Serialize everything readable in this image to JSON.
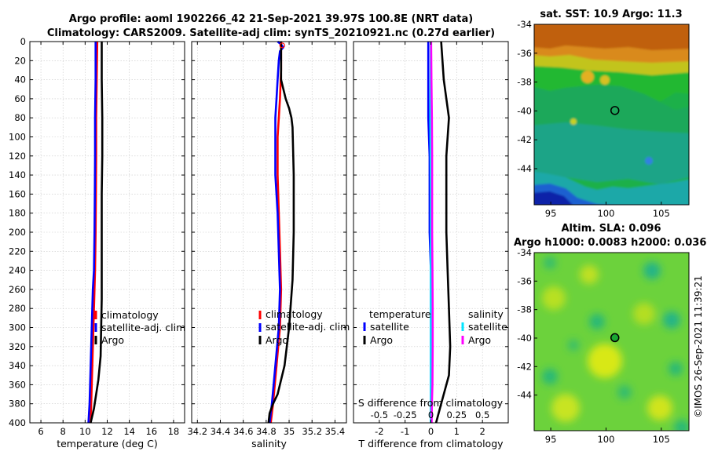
{
  "figure": {
    "title_line1": "Argo profile: aoml 1902266_42 21-Sep-2021 39.97S 100.8E (NRT data)",
    "title_line2": "Climatology: CARS2009. Satellite-adj clim: synTS_20210921.nc (0.27d earlier)",
    "watermark": "©IMOS 26-Sep-2021 11:39:21"
  },
  "colors": {
    "climatology": "#ff0000",
    "satellite": "#0000ff",
    "argo": "#000000",
    "sal_sat": "#00e5ff",
    "sal_argo": "#ff00ff"
  },
  "chart_data": [
    {
      "type": "line",
      "id": "temperature",
      "xlabel": "temperature (deg C)",
      "xlim": [
        5,
        19
      ],
      "xticks": [
        "6",
        "8",
        "10",
        "12",
        "14",
        "16",
        "18"
      ],
      "xtick_values": [
        6,
        8,
        10,
        12,
        14,
        16,
        18
      ],
      "ylim": [
        0,
        400
      ],
      "yticks": [
        "0",
        "20",
        "40",
        "60",
        "80",
        "100",
        "120",
        "140",
        "160",
        "180",
        "200",
        "220",
        "240",
        "260",
        "280",
        "300",
        "320",
        "340",
        "360",
        "380",
        "400"
      ],
      "ytick_values": [
        0,
        20,
        40,
        60,
        80,
        100,
        120,
        140,
        160,
        180,
        200,
        220,
        240,
        260,
        280,
        300,
        320,
        340,
        360,
        380,
        400
      ],
      "legend": [
        "climatology",
        "satellite-adj. clim",
        "Argo"
      ],
      "series": [
        {
          "name": "climatology",
          "color": "#ff0000",
          "depth": [
            0,
            40,
            80,
            120,
            160,
            200,
            240,
            260,
            280,
            300,
            320,
            340,
            360,
            380,
            400
          ],
          "values": [
            11.1,
            11.05,
            11.0,
            11.0,
            10.98,
            10.95,
            10.9,
            10.85,
            10.8,
            10.75,
            10.7,
            10.65,
            10.6,
            10.55,
            10.5
          ]
        },
        {
          "name": "satellite-adj. clim",
          "color": "#0000ff",
          "depth": [
            0,
            40,
            80,
            120,
            160,
            200,
            240,
            260,
            280,
            300,
            320,
            340,
            360,
            380,
            400
          ],
          "values": [
            10.95,
            10.95,
            10.9,
            10.9,
            10.88,
            10.85,
            10.8,
            10.7,
            10.65,
            10.6,
            10.55,
            10.5,
            10.45,
            10.4,
            10.3
          ]
        },
        {
          "name": "Argo",
          "color": "#000000",
          "depth": [
            0,
            40,
            80,
            120,
            160,
            200,
            240,
            270,
            300,
            330,
            355,
            370,
            385,
            395,
            400
          ],
          "values": [
            11.5,
            11.5,
            11.55,
            11.55,
            11.5,
            11.5,
            11.5,
            11.5,
            11.45,
            11.4,
            11.2,
            11.0,
            10.8,
            10.6,
            10.5
          ]
        }
      ]
    },
    {
      "type": "line",
      "id": "salinity",
      "xlabel": "salinity",
      "xlim": [
        34.15,
        35.5
      ],
      "xticks": [
        "34.2",
        "34.4",
        "34.6",
        "34.8",
        "35",
        "35.2",
        "35.4"
      ],
      "xtick_values": [
        34.2,
        34.4,
        34.6,
        34.8,
        35.0,
        35.2,
        35.4
      ],
      "ylim": [
        0,
        400
      ],
      "legend": [
        "climatology",
        "satellite-adj. clim",
        "Argo"
      ],
      "series": [
        {
          "name": "climatology",
          "color": "#ff0000",
          "depth": [
            0,
            30,
            60,
            80,
            100,
            140,
            180,
            220,
            260,
            300,
            340,
            380,
            400
          ],
          "values": [
            34.93,
            34.93,
            34.92,
            34.91,
            34.9,
            34.9,
            34.91,
            34.92,
            34.93,
            34.92,
            34.89,
            34.86,
            34.84
          ]
        },
        {
          "name": "satellite-adj. clim",
          "color": "#0000ff",
          "depth": [
            0,
            3,
            6,
            10,
            20,
            40,
            60,
            80,
            100,
            140,
            180,
            220,
            260,
            300,
            340,
            380,
            400
          ],
          "values": [
            34.9,
            34.93,
            34.95,
            34.92,
            34.91,
            34.9,
            34.89,
            34.88,
            34.88,
            34.88,
            34.9,
            34.91,
            34.92,
            34.91,
            34.88,
            34.85,
            34.83
          ]
        },
        {
          "name": "Argo",
          "color": "#000000",
          "depth": [
            0,
            40,
            60,
            70,
            80,
            90,
            140,
            200,
            250,
            300,
            340,
            370,
            380,
            390,
            400
          ],
          "values": [
            34.93,
            34.93,
            34.97,
            35.0,
            35.02,
            35.03,
            35.04,
            35.04,
            35.03,
            35.0,
            34.96,
            34.9,
            34.86,
            34.83,
            34.82
          ]
        }
      ]
    },
    {
      "type": "line",
      "id": "difference",
      "xlabel": "T difference from climatology",
      "xlim": [
        -3,
        3
      ],
      "xticks": [
        "-2",
        "-1",
        "0",
        "1",
        "2"
      ],
      "xtick_values": [
        -2,
        -1,
        0,
        1,
        2
      ],
      "top_axis_label": "S difference from climatology",
      "top_ticks": [
        "-0.5",
        "-0.25",
        "0",
        "0.25",
        "0.5"
      ],
      "top_tick_values": [
        -0.5,
        -0.25,
        0,
        0.25,
        0.5
      ],
      "top_xlim": [
        -0.75,
        0.75
      ],
      "ylim": [
        0,
        400
      ],
      "legend_headers": [
        "temperature",
        "salinity"
      ],
      "legend": [
        "satellite",
        "Argo",
        "satellite",
        "Argo"
      ],
      "series": [
        {
          "name": "T satellite",
          "color": "#0000ff",
          "depth": [
            0,
            40,
            80,
            120,
            160,
            200,
            240,
            280,
            320,
            360,
            400
          ],
          "values": [
            -0.1,
            -0.1,
            -0.1,
            -0.05,
            -0.05,
            -0.05,
            0,
            0,
            0,
            0,
            0
          ]
        },
        {
          "name": "T Argo",
          "color": "#000000",
          "depth": [
            0,
            40,
            80,
            120,
            160,
            200,
            240,
            280,
            320,
            350,
            380,
            400
          ],
          "values": [
            0.4,
            0.5,
            0.7,
            0.6,
            0.6,
            0.6,
            0.65,
            0.7,
            0.75,
            0.7,
            0.4,
            0.2
          ]
        },
        {
          "name": "S satellite",
          "color": "#00e5ff",
          "depth": [
            0,
            40,
            80,
            120,
            160,
            200,
            240,
            280,
            320,
            360,
            400
          ],
          "values": [
            0,
            -0.01,
            -0.02,
            -0.01,
            0,
            0,
            0,
            0,
            0,
            0,
            0
          ]
        },
        {
          "name": "S Argo",
          "color": "#ff00ff",
          "depth": [
            0,
            40,
            80,
            120,
            160,
            200,
            240,
            280,
            320,
            360,
            380,
            400
          ],
          "values": [
            0.01,
            0.02,
            0.04,
            0.05,
            0.05,
            0.05,
            0.06,
            0.07,
            0.07,
            0.06,
            0.04,
            0.03
          ]
        }
      ]
    },
    {
      "type": "heatmap",
      "id": "sst-map",
      "title": "sat. SST: 10.9 Argo: 11.3",
      "xticks": [
        "95",
        "100",
        "105"
      ],
      "xtick_values": [
        95,
        100,
        105
      ],
      "xlim": [
        93.5,
        107.5
      ],
      "yticks": [
        "-34",
        "-36",
        "-38",
        "-40",
        "-42",
        "-44"
      ],
      "ytick_values": [
        -34,
        -36,
        -38,
        -40,
        -42,
        -44
      ],
      "ylim": [
        -46.5,
        -34
      ],
      "marker": {
        "lon": 100.8,
        "lat": -39.97
      }
    },
    {
      "type": "heatmap",
      "id": "sla-map",
      "title_line1": "Altim. SLA: 0.096",
      "title_line2": "Argo h1000: 0.0083 h2000: 0.036",
      "xticks": [
        "95",
        "100",
        "105"
      ],
      "xtick_values": [
        95,
        100,
        105
      ],
      "xlim": [
        93.5,
        107.5
      ],
      "yticks": [
        "-34",
        "-36",
        "-38",
        "-40",
        "-42",
        "-44"
      ],
      "ytick_values": [
        -34,
        -36,
        -38,
        -40,
        -42,
        -44
      ],
      "ylim": [
        -46.5,
        -34
      ],
      "marker": {
        "lon": 100.8,
        "lat": -39.97
      }
    }
  ]
}
